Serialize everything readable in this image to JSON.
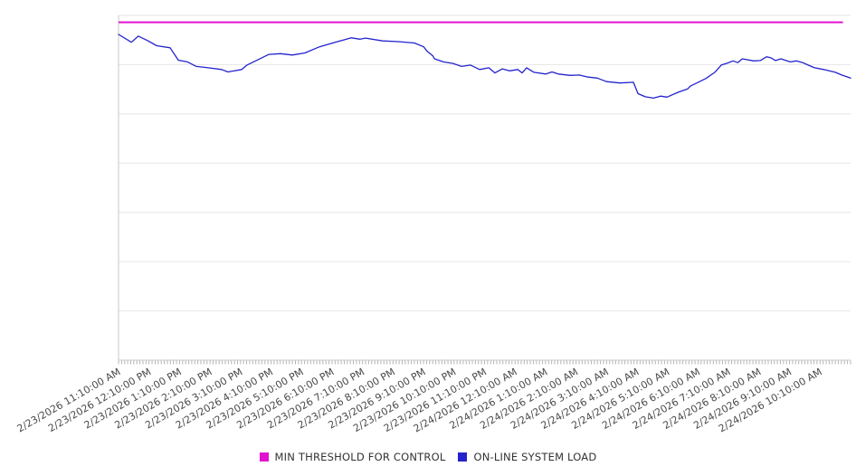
{
  "chart_data": {
    "type": "line",
    "title": "",
    "legend_position": "bottom",
    "x_axis": {
      "tick_labels": [
        "2/23/2026 11:10:00 AM",
        "2/23/2026 12:10:00 PM",
        "2/23/2026 1:10:00 PM",
        "2/23/2026 2:10:00 PM",
        "2/23/2026 3:10:00 PM",
        "2/23/2026 4:10:00 PM",
        "2/23/2026 5:10:00 PM",
        "2/23/2026 6:10:00 PM",
        "2/23/2026 7:10:00 PM",
        "2/23/2026 8:10:00 PM",
        "2/23/2026 9:10:00 PM",
        "2/23/2026 10:10:00 PM",
        "2/23/2026 11:10:00 PM",
        "2/24/2026 12:10:00 AM",
        "2/24/2026 1:10:00 AM",
        "2/24/2026 2:10:00 AM",
        "2/24/2026 3:10:00 AM",
        "2/24/2026 4:10:00 AM",
        "2/24/2026 5:10:00 AM",
        "2/24/2026 6:10:00 AM",
        "2/24/2026 7:10:00 AM",
        "2/24/2026 8:10:00 AM",
        "2/24/2026 9:10:00 AM",
        "2/24/2026 10:10:00 AM"
      ],
      "hours_span": 24,
      "minor_ticks_per_hour": 10,
      "label_rotation_deg": -30
    },
    "y_axis": {
      "min": 0,
      "max": 100,
      "gridline_divisions": 7,
      "labels_visible": false
    },
    "series": [
      {
        "name": "MIN THRESHOLD FOR CONTROL",
        "color": "#e312cf",
        "kind": "threshold",
        "value": 98,
        "x_range_hours": [
          0,
          23.75
        ]
      },
      {
        "name": "ON-LINE SYSTEM LOAD",
        "color": "#2323cd",
        "kind": "line",
        "points": [
          [
            0,
            94.5
          ],
          [
            0.42,
            92.2
          ],
          [
            0.65,
            94.0
          ],
          [
            0.95,
            92.7
          ],
          [
            1.25,
            91.2
          ],
          [
            1.69,
            90.6
          ],
          [
            1.96,
            87.0
          ],
          [
            2.26,
            86.5
          ],
          [
            2.55,
            85.2
          ],
          [
            2.94,
            84.8
          ],
          [
            3.38,
            84.3
          ],
          [
            3.59,
            83.6
          ],
          [
            4.04,
            84.3
          ],
          [
            4.21,
            85.6
          ],
          [
            4.93,
            88.7
          ],
          [
            5.31,
            88.9
          ],
          [
            5.7,
            88.5
          ],
          [
            6.11,
            89.1
          ],
          [
            6.59,
            90.9
          ],
          [
            7.18,
            92.4
          ],
          [
            7.63,
            93.5
          ],
          [
            7.92,
            93.1
          ],
          [
            8.1,
            93.4
          ],
          [
            8.66,
            92.6
          ],
          [
            9.17,
            92.4
          ],
          [
            9.7,
            92.0
          ],
          [
            10.0,
            90.9
          ],
          [
            10.12,
            89.6
          ],
          [
            10.3,
            88.3
          ],
          [
            10.36,
            87.4
          ],
          [
            10.65,
            86.5
          ],
          [
            10.95,
            86.1
          ],
          [
            11.25,
            85.2
          ],
          [
            11.54,
            85.6
          ],
          [
            11.84,
            84.3
          ],
          [
            12.14,
            84.8
          ],
          [
            12.34,
            83.3
          ],
          [
            12.58,
            84.5
          ],
          [
            12.82,
            83.9
          ],
          [
            13.09,
            84.3
          ],
          [
            13.23,
            83.3
          ],
          [
            13.38,
            84.8
          ],
          [
            13.62,
            83.5
          ],
          [
            14.01,
            83.0
          ],
          [
            14.21,
            83.6
          ],
          [
            14.42,
            83.0
          ],
          [
            14.81,
            82.6
          ],
          [
            15.1,
            82.7
          ],
          [
            15.4,
            82.1
          ],
          [
            15.7,
            81.8
          ],
          [
            16.0,
            80.8
          ],
          [
            16.44,
            80.4
          ],
          [
            16.88,
            80.6
          ],
          [
            17.03,
            77.3
          ],
          [
            17.27,
            76.4
          ],
          [
            17.54,
            76.0
          ],
          [
            17.77,
            76.6
          ],
          [
            17.98,
            76.3
          ],
          [
            18.37,
            77.8
          ],
          [
            18.66,
            78.7
          ],
          [
            18.75,
            79.5
          ],
          [
            18.96,
            80.4
          ],
          [
            19.26,
            81.7
          ],
          [
            19.55,
            83.5
          ],
          [
            19.76,
            85.6
          ],
          [
            19.94,
            86.1
          ],
          [
            20.15,
            86.8
          ],
          [
            20.3,
            86.3
          ],
          [
            20.45,
            87.4
          ],
          [
            20.83,
            86.8
          ],
          [
            21.04,
            86.9
          ],
          [
            21.25,
            88.0
          ],
          [
            21.39,
            87.7
          ],
          [
            21.54,
            86.9
          ],
          [
            21.72,
            87.4
          ],
          [
            22.02,
            86.5
          ],
          [
            22.22,
            86.8
          ],
          [
            22.43,
            86.3
          ],
          [
            22.61,
            85.6
          ],
          [
            22.82,
            84.8
          ],
          [
            23.12,
            84.3
          ],
          [
            23.5,
            83.5
          ],
          [
            23.71,
            82.7
          ],
          [
            24,
            81.8
          ]
        ]
      }
    ]
  },
  "colors": {
    "background": "#ffffff",
    "gridline": "#e6e6e6",
    "axis": "#c9c9c9",
    "minor_tick": "#b5b5b5",
    "axis_label_text": "#4a4a4a",
    "legend_text": "#333333"
  }
}
